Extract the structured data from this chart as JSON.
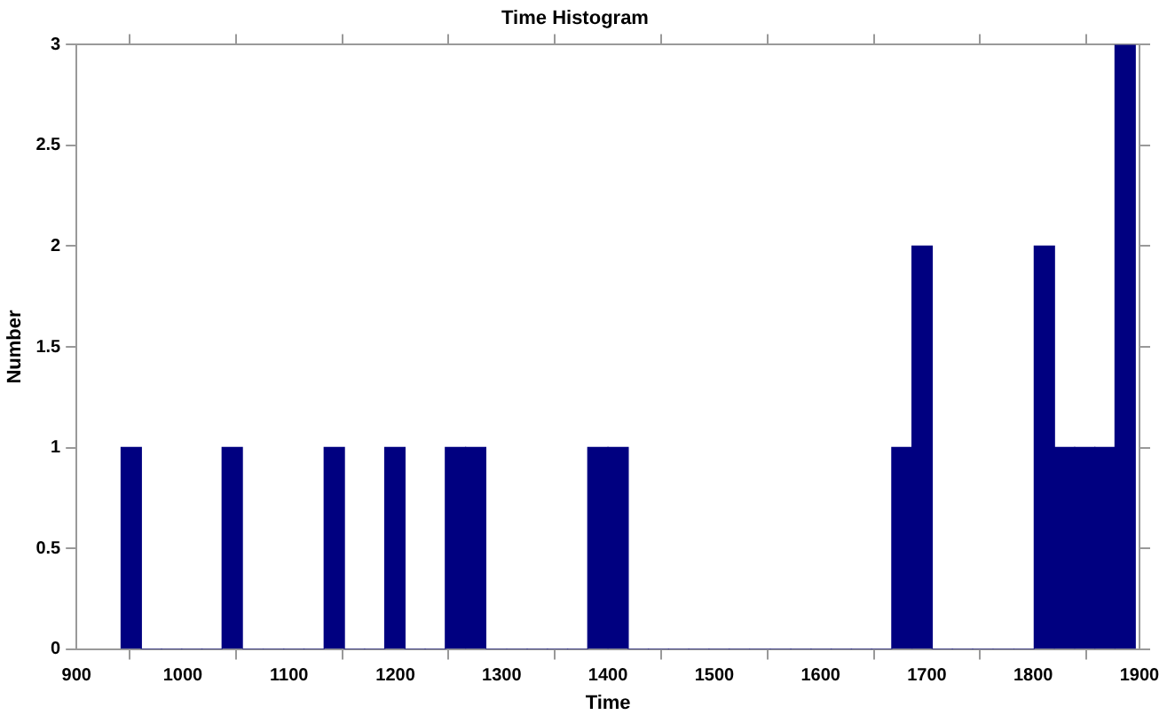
{
  "chart_data": {
    "type": "histogram",
    "title": "Time Histogram",
    "xlabel": "Time",
    "ylabel": "Number",
    "color": "#000080",
    "bins": [
      942,
      961,
      980,
      999,
      1018,
      1037,
      1056,
      1076,
      1095,
      1114,
      1133,
      1152,
      1171,
      1190,
      1209,
      1228,
      1247,
      1266,
      1285,
      1305,
      1324,
      1343,
      1362,
      1381,
      1400,
      1419,
      1438,
      1457,
      1476,
      1495,
      1514,
      1533,
      1553,
      1572,
      1591,
      1610,
      1629,
      1648,
      1667,
      1686,
      1705,
      1724,
      1743,
      1762,
      1782,
      1801,
      1820,
      1839,
      1858,
      1877,
      1896
    ],
    "values": [
      1,
      0,
      0,
      0,
      0,
      1,
      0,
      0,
      0,
      0,
      1,
      0,
      0,
      1,
      0,
      0,
      1,
      1,
      0,
      0,
      0,
      0,
      0,
      1,
      1,
      0,
      0,
      0,
      0,
      0,
      0,
      0,
      0,
      0,
      0,
      0,
      0,
      0,
      1,
      2,
      0,
      0,
      0,
      0,
      0,
      2,
      1,
      1,
      1,
      3
    ],
    "xlim": [
      900,
      1900
    ],
    "xticks": [
      900,
      1000,
      1100,
      1200,
      1300,
      1400,
      1500,
      1600,
      1700,
      1800,
      1900
    ],
    "ylim": [
      0,
      3
    ],
    "yticks": [
      0,
      0.5,
      1,
      1.5,
      2,
      2.5,
      3
    ],
    "grid": false,
    "legend": false
  }
}
